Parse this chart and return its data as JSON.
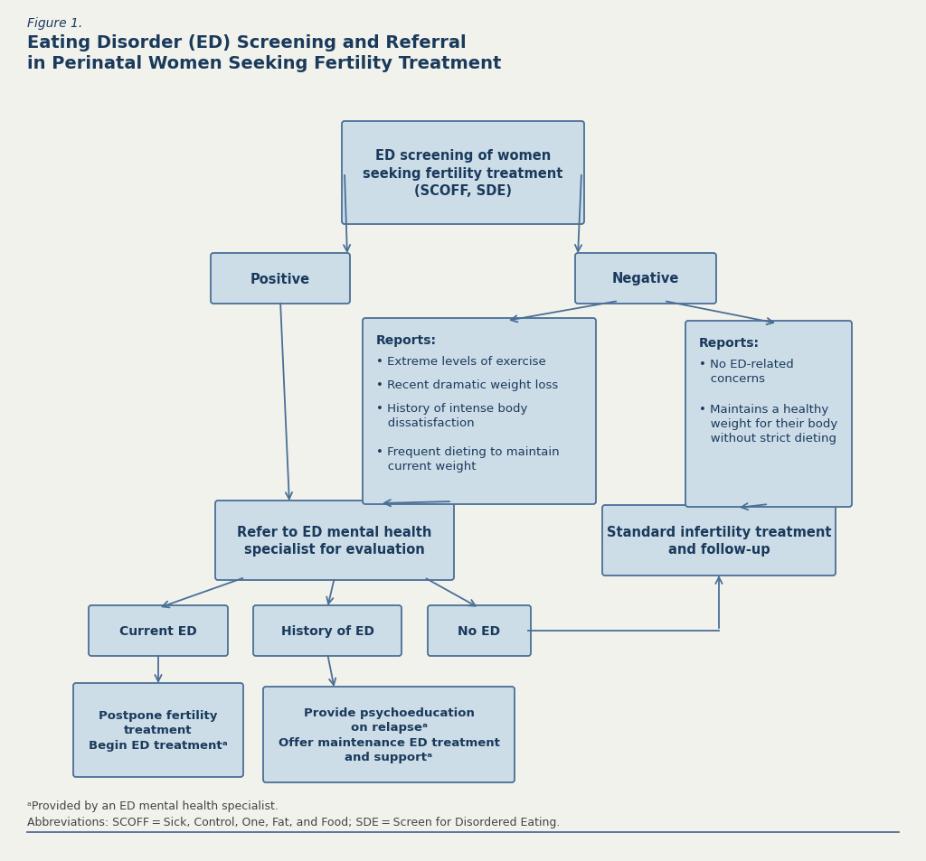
{
  "bg_color": "#f2f2ec",
  "box_fill": "#ccdde8",
  "box_edge": "#4a6f96",
  "text_color": "#1a3a5c",
  "arrow_color": "#4a6f96",
  "title_label": "Figure 1.",
  "title_main_line1": "Eating Disorder (ED) Screening and Referral",
  "title_main_line2": "in Perinatal Women Seeking Fertility Treatment",
  "footnote1": "ᵃProvided by an ED mental health specialist.",
  "footnote2": "Abbreviations: SCOFF = Sick, Control, One, Fat, and Food; SDE = Screen for Disordered Eating."
}
